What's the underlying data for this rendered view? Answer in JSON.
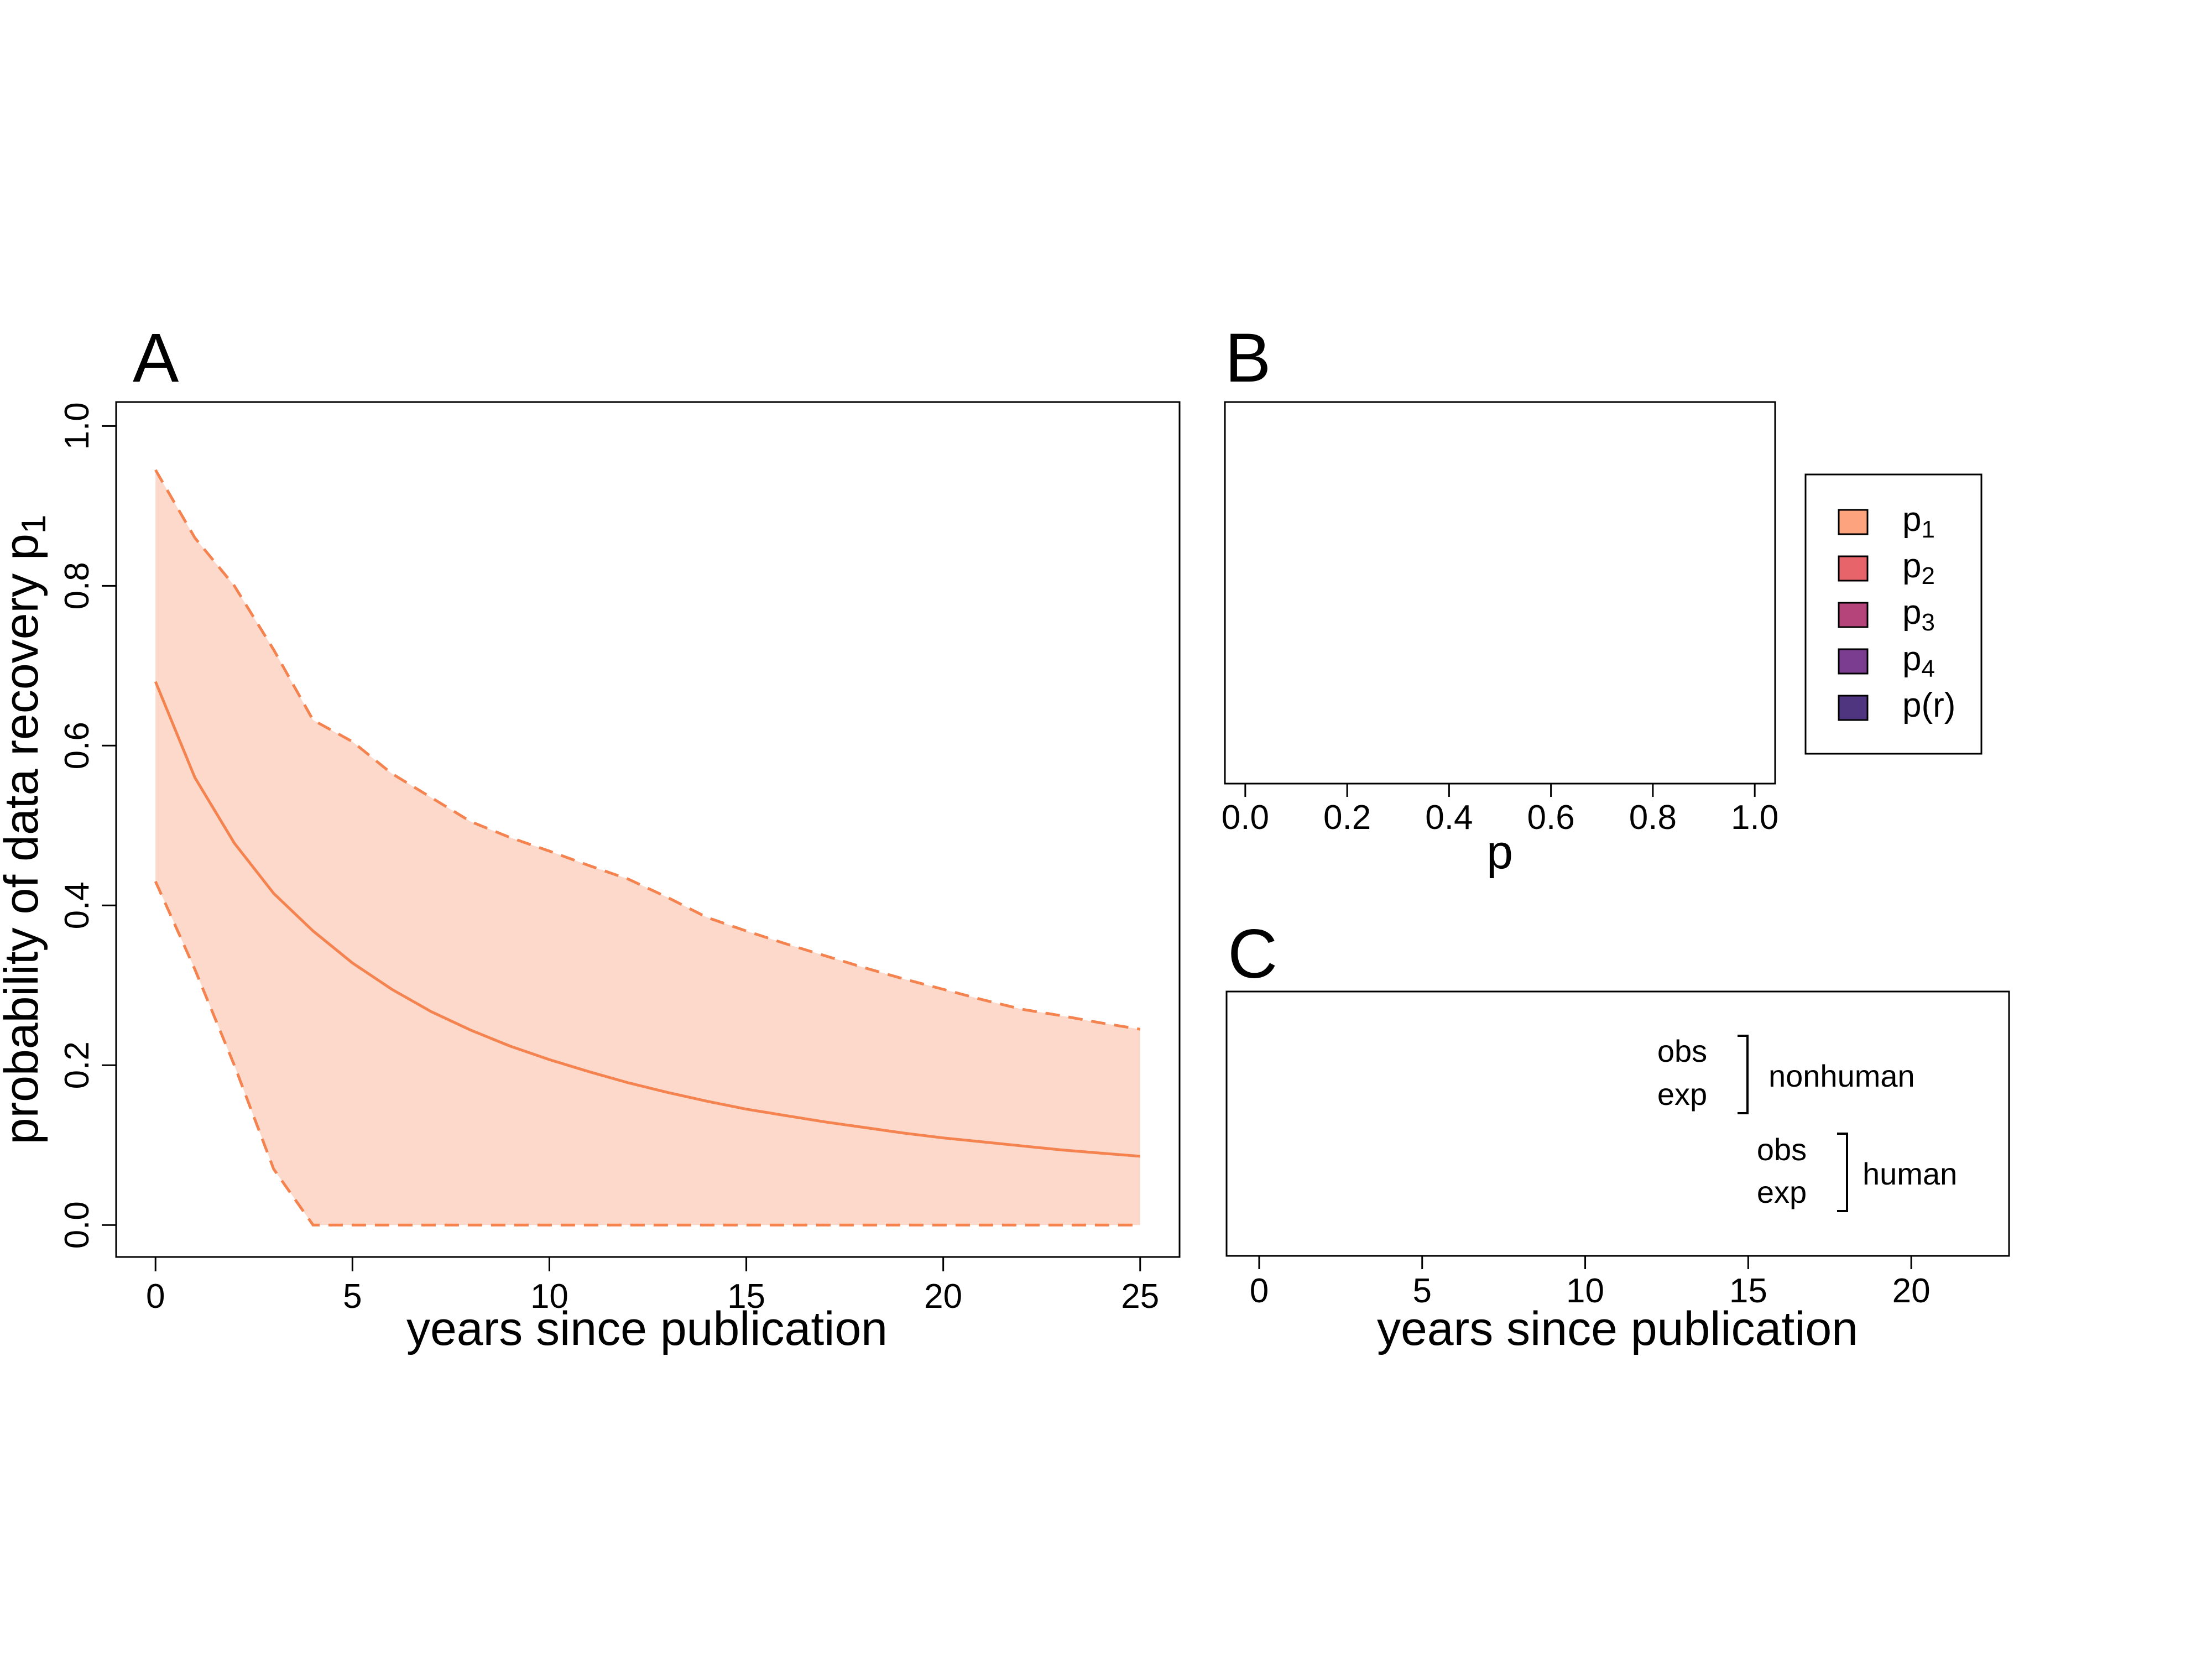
{
  "colors": {
    "p1": "#FDA47E",
    "p2": "#E8646B",
    "p3": "#B5447A",
    "p4": "#7B3D8F",
    "pr": "#4F3580",
    "p1_line": "#F4834F",
    "p1_band": "#FCD9CB"
  },
  "chart_data": [
    {
      "panel": "A",
      "type": "line",
      "xlabel": "years since publication",
      "ylabel": "probability of data recovery p",
      "ylabel_subscript": "1",
      "xlim": [
        -1,
        26
      ],
      "ylim": [
        -0.04,
        1.03
      ],
      "xticks": [
        0,
        5,
        10,
        15,
        20,
        25
      ],
      "xtick_labels": [
        "0",
        "5",
        "10",
        "15",
        "20",
        "25"
      ],
      "yticks": [
        0,
        0.2,
        0.4,
        0.6,
        0.8,
        1
      ],
      "ytick_labels": [
        "0.0",
        "0.2",
        "0.4",
        "0.6",
        "0.8",
        "1.0"
      ],
      "x": [
        0,
        1,
        2,
        3,
        4,
        5,
        6,
        7,
        8,
        9,
        10,
        11,
        12,
        13,
        14,
        15,
        16,
        17,
        18,
        19,
        20,
        21,
        22,
        23,
        24,
        25
      ],
      "series": [
        {
          "role": "median",
          "color_key": "p1_line",
          "style": "solid",
          "values": [
            0.68,
            0.56,
            0.478,
            0.415,
            0.368,
            0.328,
            0.295,
            0.267,
            0.244,
            0.224,
            0.207,
            0.192,
            0.178,
            0.166,
            0.155,
            0.145,
            0.137,
            0.129,
            0.122,
            0.115,
            0.109,
            0.104,
            0.099,
            0.094,
            0.09,
            0.086
          ]
        },
        {
          "role": "upper",
          "color_key": "p1_line",
          "style": "dashed",
          "values": [
            0.945,
            0.86,
            0.8,
            0.72,
            0.632,
            0.605,
            0.565,
            0.535,
            0.505,
            0.485,
            0.468,
            0.45,
            0.433,
            0.41,
            0.385,
            0.368,
            0.352,
            0.337,
            0.322,
            0.308,
            0.295,
            0.282,
            0.27,
            0.262,
            0.253,
            0.245
          ]
        },
        {
          "role": "lower",
          "color_key": "p1_line",
          "style": "dashed",
          "values": [
            0.43,
            0.32,
            0.2,
            0.07,
            0,
            0,
            0,
            0,
            0,
            0,
            0,
            0,
            0,
            0,
            0,
            0,
            0,
            0,
            0,
            0,
            0,
            0,
            0,
            0,
            0,
            0
          ]
        }
      ]
    },
    {
      "panel": "B",
      "type": "bar",
      "xlabel": "p",
      "xlim": [
        -0.04,
        1.04
      ],
      "xticks": [
        0,
        0.2,
        0.4,
        0.6,
        0.8,
        1
      ],
      "xtick_labels": [
        "0.0",
        "0.2",
        "0.4",
        "0.6",
        "0.8",
        "1.0"
      ],
      "legend": {
        "position": "right",
        "entries": [
          {
            "base": "p",
            "sub": "1",
            "color_key": "p1"
          },
          {
            "base": "p",
            "sub": "2",
            "color_key": "p2"
          },
          {
            "base": "p",
            "sub": "3",
            "color_key": "p3"
          },
          {
            "base": "p",
            "sub": "4",
            "color_key": "p4"
          },
          {
            "base": "p(r)",
            "sub": "",
            "color_key": "pr"
          }
        ]
      }
    },
    {
      "panel": "C",
      "type": "bar",
      "xlabel": "years since publication",
      "xlim": [
        -1,
        23
      ],
      "xticks": [
        0,
        5,
        10,
        15,
        20
      ],
      "xtick_labels": [
        "0",
        "5",
        "10",
        "15",
        "20"
      ],
      "groups": [
        {
          "label": "nonhuman",
          "rows": [
            "obs",
            "exp"
          ]
        },
        {
          "label": "human",
          "rows": [
            "obs",
            "exp"
          ]
        }
      ]
    }
  ],
  "panels": {
    "a_letter": "A",
    "b_letter": "B",
    "c_letter": "C"
  }
}
